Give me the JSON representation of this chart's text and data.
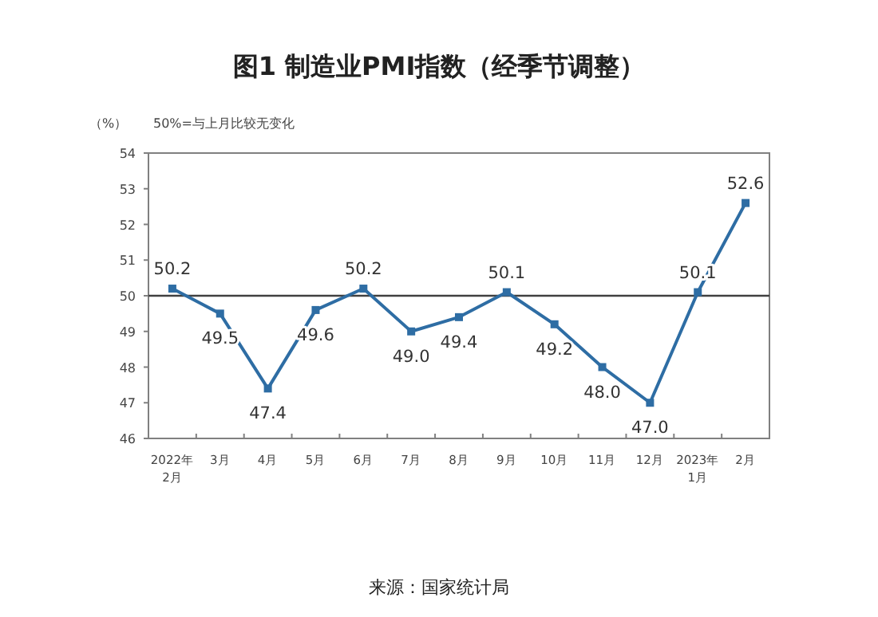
{
  "chart_data": {
    "type": "line",
    "title": "图1 制造业PMI指数（经季节调整）",
    "ylabel": "（%）",
    "annotations": [
      "50%=与上月比较无变化",
      "来源：国家统计局"
    ],
    "categories": [
      "2022年\n2月",
      "3月",
      "4月",
      "5月",
      "6月",
      "7月",
      "8月",
      "9月",
      "10月",
      "11月",
      "12月",
      "2023年\n1月",
      "2月"
    ],
    "series": [
      {
        "color": "#2e6da4",
        "values": [
          50.2,
          49.5,
          47.4,
          49.6,
          50.2,
          49.0,
          49.4,
          50.1,
          49.2,
          48.0,
          47.0,
          50.1,
          52.6
        ],
        "value_labels": [
          "50.2",
          "49.5",
          "47.4",
          "49.6",
          "50.2",
          "49.0",
          "49.4",
          "50.1",
          "49.2",
          "48.0",
          "47.0",
          "50.1",
          "52.6"
        ]
      }
    ],
    "ylim": [
      46,
      54
    ],
    "yticks": [
      46,
      47,
      48,
      49,
      50,
      51,
      52,
      53,
      54
    ],
    "ref_lines": [
      {
        "axis": "y",
        "value": 50,
        "color": "#404040"
      }
    ],
    "marker": "square",
    "grid": false
  }
}
